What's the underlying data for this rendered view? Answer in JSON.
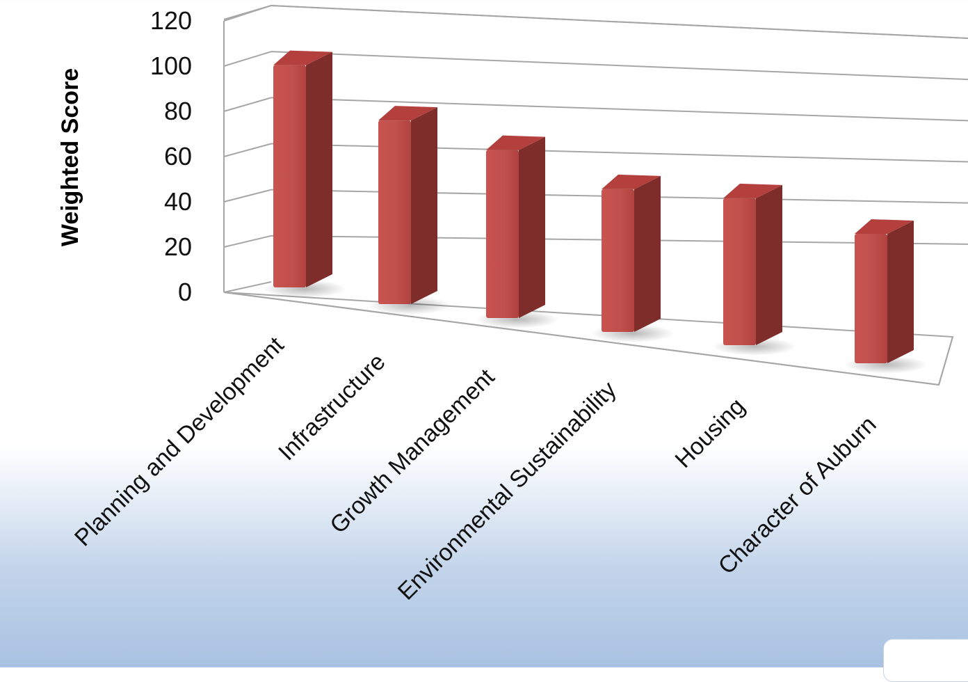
{
  "chart_data": {
    "type": "bar",
    "style": "3d-column",
    "categories": [
      "Planning and Development",
      "Infrastructure",
      "Growth Management",
      "Environmental Sustainability",
      "Housing",
      "Character of Auburn"
    ],
    "values": [
      105,
      87,
      80,
      68,
      70,
      62
    ],
    "title": "",
    "xlabel": "",
    "ylabel": "Weighted Score",
    "ylim": [
      0,
      120
    ],
    "yticks": [
      "0",
      "20",
      "40",
      "60",
      "80",
      "100",
      "120"
    ],
    "grid": true,
    "legend": "none",
    "colors": {
      "bar_front": "#c0504d",
      "bar_side": "#7e2d2b",
      "bar_top": "#b4403d",
      "grid": "#a6a6a6"
    }
  }
}
